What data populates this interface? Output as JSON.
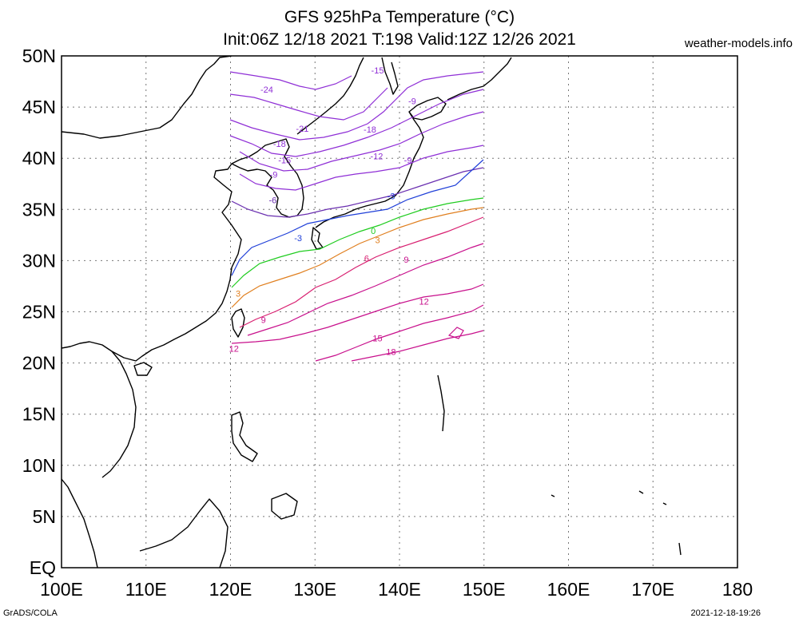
{
  "header": {
    "title_line1": "GFS 925hPa Temperature (°C)",
    "title_line2": "Init:06Z 12/18 2021 T:198 Valid:12Z 12/26 2021",
    "site": "weather-models.info"
  },
  "footer": {
    "left": "GrADS/COLA",
    "right": "2021-12-18-19:26"
  },
  "map": {
    "lat_labels": [
      "50N",
      "45N",
      "40N",
      "35N",
      "30N",
      "25N",
      "20N",
      "15N",
      "10N",
      "5N",
      "EQ"
    ],
    "lon_labels": [
      "100E",
      "110E",
      "120E",
      "130E",
      "140E",
      "150E",
      "160E",
      "170E",
      "180"
    ],
    "lat_range": [
      0,
      50
    ],
    "lon_range": [
      100,
      180
    ],
    "grid": "dotted",
    "contour_colors": {
      "-24": "#8f2fd6",
      "-21": "#8f2fd6",
      "-18": "#8f2fd6",
      "-15": "#8f2fd6",
      "-12": "#8f2fd6",
      "-9": "#8f2fd6",
      "-6": "#6a2fb0",
      "-3": "#1f3fd8",
      "0": "#1fcc1f",
      "3": "#e07f1f",
      "6": "#d81f70",
      "9": "#c8108c",
      "12": "#c8108c",
      "15": "#c8108c",
      "18": "#c8108c"
    },
    "contour_labels": [
      {
        "text": "-24",
        "lon": 124.3,
        "lat": 46.4
      },
      {
        "text": "-21",
        "lon": 128.5,
        "lat": 42.6
      },
      {
        "text": "-18",
        "lon": 136.5,
        "lat": 42.5
      },
      {
        "text": "-18",
        "lon": 125.8,
        "lat": 41.1
      },
      {
        "text": "-15",
        "lon": 137.4,
        "lat": 48.3
      },
      {
        "text": "-15",
        "lon": 126.4,
        "lat": 39.5
      },
      {
        "text": "-12",
        "lon": 137.3,
        "lat": 39.9
      },
      {
        "text": "-9",
        "lon": 125.1,
        "lat": 38.1
      },
      {
        "text": "-9",
        "lon": 141.5,
        "lat": 45.3
      },
      {
        "text": "-9",
        "lon": 141.0,
        "lat": 39.5
      },
      {
        "text": "-6",
        "lon": 125.0,
        "lat": 35.6
      },
      {
        "text": "-3",
        "lon": 128.0,
        "lat": 31.9
      },
      {
        "text": "-3",
        "lon": 139.0,
        "lat": 36.0
      },
      {
        "text": "0",
        "lon": 136.9,
        "lat": 32.6
      },
      {
        "text": "3",
        "lon": 137.4,
        "lat": 31.7
      },
      {
        "text": "3",
        "lon": 120.9,
        "lat": 26.5
      },
      {
        "text": "6",
        "lon": 136.1,
        "lat": 29.9
      },
      {
        "text": "9",
        "lon": 140.8,
        "lat": 29.8
      },
      {
        "text": "9",
        "lon": 123.9,
        "lat": 23.9
      },
      {
        "text": "12",
        "lon": 142.9,
        "lat": 25.7
      },
      {
        "text": "12",
        "lon": 120.4,
        "lat": 21.1
      },
      {
        "text": "15",
        "lon": 137.4,
        "lat": 22.1
      },
      {
        "text": "18",
        "lon": 139.0,
        "lat": 20.8
      }
    ]
  }
}
